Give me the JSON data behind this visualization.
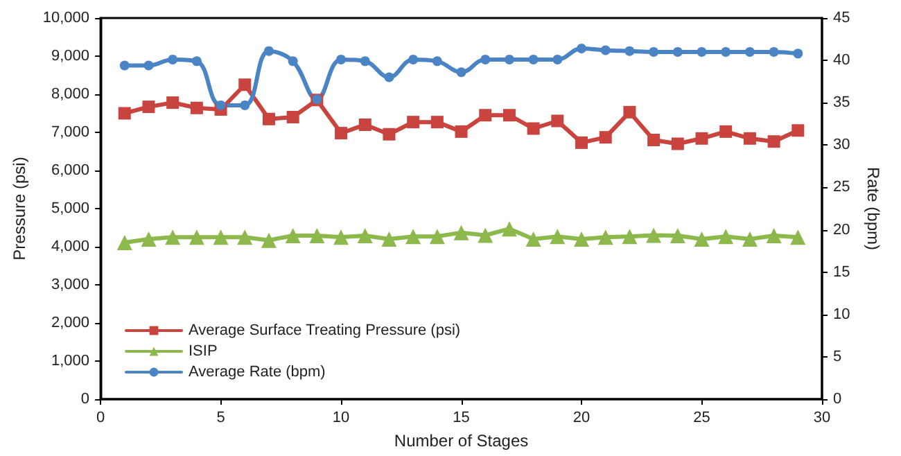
{
  "chart_data": {
    "type": "line",
    "xlabel": "Number of Stages",
    "ylabel": "Pressure (psi)",
    "y2label": "Rate (bpm)",
    "x": [
      1,
      2,
      3,
      4,
      5,
      6,
      7,
      8,
      9,
      10,
      11,
      12,
      13,
      14,
      15,
      16,
      17,
      18,
      19,
      20,
      21,
      22,
      23,
      24,
      25,
      26,
      27,
      28,
      29
    ],
    "xlim": [
      0,
      30
    ],
    "xticks": [
      0,
      5,
      10,
      15,
      20,
      25,
      30
    ],
    "ylim": [
      0,
      10000
    ],
    "yticks": [
      {
        "value": 0,
        "label": "0"
      },
      {
        "value": 1000,
        "label": "1,000"
      },
      {
        "value": 2000,
        "label": "2,000"
      },
      {
        "value": 3000,
        "label": "3,000"
      },
      {
        "value": 4000,
        "label": "4,000"
      },
      {
        "value": 5000,
        "label": "5,000"
      },
      {
        "value": 6000,
        "label": "6,000"
      },
      {
        "value": 7000,
        "label": "7,000"
      },
      {
        "value": 8000,
        "label": "8,000"
      },
      {
        "value": 9000,
        "label": "9,000"
      },
      {
        "value": 10000,
        "label": "10,000"
      }
    ],
    "y2lim": [
      0,
      45
    ],
    "y2ticks": [
      0,
      5,
      10,
      15,
      20,
      25,
      30,
      35,
      40,
      45
    ],
    "grid": false,
    "legend": "bottom left",
    "line_style": "solid",
    "series": [
      {
        "name": "Average Surface Treating Pressure (psi)",
        "color": "#c9443f",
        "marker": "square",
        "values": [
          7500,
          7670,
          7780,
          7640,
          7600,
          8250,
          7350,
          7400,
          7850,
          6980,
          7200,
          6950,
          7270,
          7270,
          7020,
          7450,
          7450,
          7100,
          7300,
          6730,
          6870,
          7530,
          6800,
          6700,
          6840,
          7020,
          6840,
          6760,
          7050
        ]
      },
      {
        "name": "ISIP",
        "color": "#8db94c",
        "marker": "triangle",
        "values": [
          4110,
          4200,
          4250,
          4250,
          4250,
          4250,
          4170,
          4290,
          4290,
          4250,
          4290,
          4200,
          4270,
          4270,
          4370,
          4300,
          4470,
          4200,
          4270,
          4200,
          4250,
          4270,
          4300,
          4290,
          4200,
          4270,
          4200,
          4290,
          4250
        ]
      },
      {
        "name": "Average Rate (bpm)",
        "color": "#4a84c4",
        "marker": "circle",
        "axis": "y2",
        "values": [
          39.4,
          39.4,
          40.1,
          39.9,
          34.7,
          34.7,
          41.1,
          39.9,
          35.4,
          40.1,
          39.9,
          38.0,
          40.1,
          39.9,
          38.6,
          40.1,
          40.1,
          40.1,
          40.1,
          41.4,
          41.2,
          41.1,
          41.0,
          41.0,
          41.0,
          41.0,
          41.0,
          41.0,
          40.8
        ]
      }
    ]
  }
}
